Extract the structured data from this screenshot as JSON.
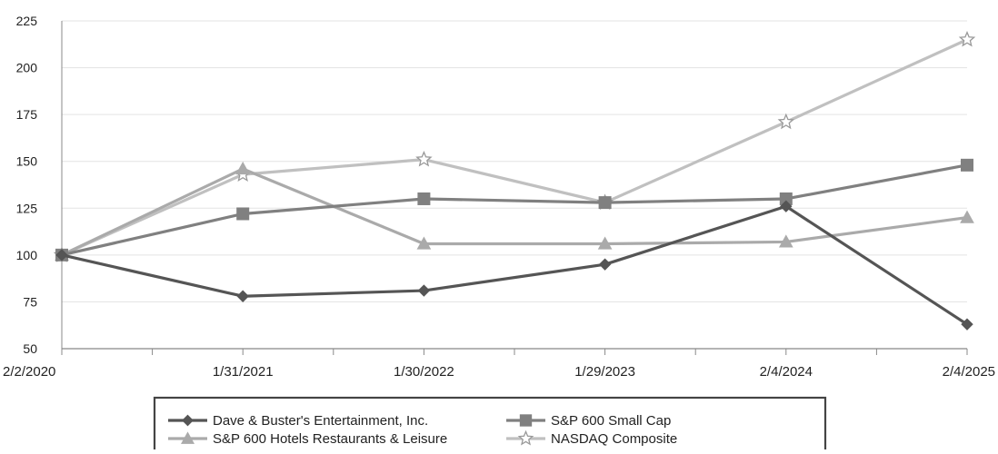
{
  "chart_data": {
    "type": "line",
    "categories": [
      "2/2/2020",
      "1/31/2021",
      "1/30/2022",
      "1/29/2023",
      "2/4/2024",
      "2/4/2025"
    ],
    "ylim": [
      50,
      225
    ],
    "yticks": [
      50,
      75,
      100,
      125,
      150,
      175,
      200,
      225
    ],
    "grid": true,
    "legend_position": "bottom",
    "series": [
      {
        "name": "Dave & Buster's Entertainment, Inc.",
        "marker": "diamond",
        "color": "#555555",
        "values": [
          100,
          78,
          81,
          95,
          126,
          63
        ]
      },
      {
        "name": "S&P 600 Small Cap",
        "marker": "square",
        "color": "#808080",
        "values": [
          100,
          122,
          130,
          128,
          130,
          148
        ]
      },
      {
        "name": "S&P 600 Hotels Restaurants & Leisure",
        "marker": "triangle",
        "color": "#aaaaaa",
        "values": [
          100,
          146,
          106,
          106,
          107,
          120
        ]
      },
      {
        "name": "NASDAQ Composite",
        "marker": "star",
        "color": "#c0c0c0",
        "values": [
          100,
          143,
          151,
          128,
          171,
          215
        ]
      }
    ]
  }
}
